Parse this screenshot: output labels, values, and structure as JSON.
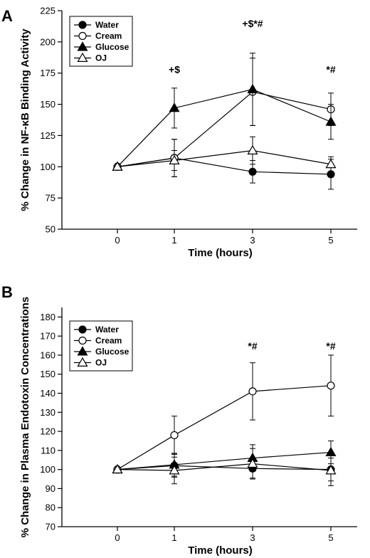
{
  "chart_data": [
    {
      "panel": "A",
      "type": "line",
      "xlabel": "Time (hours)",
      "ylabel": "% Change in NF-κB Binding Activity",
      "ylim": [
        50,
        225
      ],
      "yticks": [
        50,
        75,
        100,
        125,
        150,
        175,
        200,
        225
      ],
      "xticks": [
        0,
        1,
        3,
        5
      ],
      "legend": "top-left",
      "series": [
        {
          "name": "Water",
          "marker": "filled-circle",
          "x": [
            0,
            1,
            3,
            5
          ],
          "y": [
            100,
            107,
            96,
            94
          ],
          "err": [
            0,
            15,
            9,
            12
          ]
        },
        {
          "name": "Cream",
          "marker": "open-circle",
          "x": [
            0,
            1,
            3,
            5
          ],
          "y": [
            100,
            107,
            160,
            146
          ],
          "err": [
            0,
            15,
            27,
            13
          ]
        },
        {
          "name": "Glucose",
          "marker": "filled-triangle",
          "x": [
            0,
            1,
            3,
            5
          ],
          "y": [
            100,
            147,
            162,
            136
          ],
          "err": [
            0,
            16,
            29,
            14
          ]
        },
        {
          "name": "OJ",
          "marker": "open-triangle",
          "x": [
            0,
            1,
            3,
            5
          ],
          "y": [
            100,
            105,
            113,
            102
          ],
          "err": [
            0,
            8,
            11,
            6
          ]
        }
      ],
      "annotations": [
        {
          "text": "+$",
          "x": 1,
          "y": 175
        },
        {
          "text": "+$*#",
          "x": 3,
          "y": 212
        },
        {
          "text": "*#",
          "x": 5,
          "y": 175
        }
      ]
    },
    {
      "panel": "B",
      "type": "line",
      "xlabel": "Time (hours)",
      "ylabel": "% Change in Plasma Endotoxin Concentrations",
      "ylim": [
        70,
        185
      ],
      "yticks": [
        70,
        80,
        90,
        100,
        110,
        120,
        130,
        140,
        150,
        160,
        170,
        180
      ],
      "xticks": [
        0,
        1,
        3,
        5
      ],
      "legend": "top-left",
      "series": [
        {
          "name": "Water",
          "marker": "filled-circle",
          "x": [
            0,
            1,
            3,
            5
          ],
          "y": [
            100,
            102,
            100.5,
            100
          ],
          "err": [
            0,
            6,
            5,
            6
          ]
        },
        {
          "name": "Cream",
          "marker": "open-circle",
          "x": [
            0,
            1,
            3,
            5
          ],
          "y": [
            100,
            118,
            141,
            144
          ],
          "err": [
            0,
            10,
            15,
            16
          ]
        },
        {
          "name": "Glucose",
          "marker": "filled-triangle",
          "x": [
            0,
            1,
            3,
            5
          ],
          "y": [
            100,
            102.5,
            106,
            109
          ],
          "err": [
            0,
            6,
            7,
            6
          ]
        },
        {
          "name": "OJ",
          "marker": "open-triangle",
          "x": [
            0,
            1,
            3,
            5
          ],
          "y": [
            100,
            99.5,
            103,
            99.5
          ],
          "err": [
            0,
            7,
            8,
            8
          ]
        }
      ],
      "annotations": [
        {
          "text": "*#",
          "x": 3,
          "y": 163
        },
        {
          "text": "*#",
          "x": 5,
          "y": 163
        }
      ]
    }
  ]
}
